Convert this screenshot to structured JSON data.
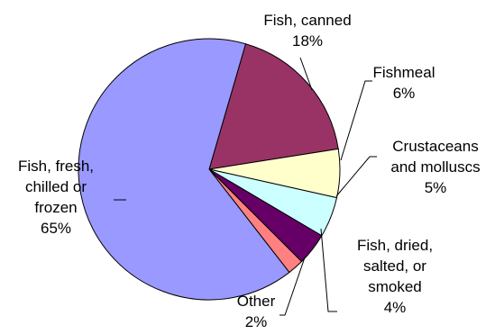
{
  "chart_data": {
    "type": "pie",
    "title": "",
    "slices": [
      {
        "label": "Fish, fresh, chilled or frozen",
        "value": 65,
        "value_label": "65%",
        "color": "#9999ff",
        "label_lines": [
          "Fish, fresh,",
          "chilled or",
          "frozen"
        ]
      },
      {
        "label": "Fish, canned",
        "value": 18,
        "value_label": "18%",
        "color": "#993366",
        "label_lines": [
          "Fish, canned"
        ]
      },
      {
        "label": "Fishmeal",
        "value": 6,
        "value_label": "6%",
        "color": "#ffffcc",
        "label_lines": [
          "Fishmeal"
        ]
      },
      {
        "label": "Crustaceans and molluscs",
        "value": 5,
        "value_label": "5%",
        "color": "#ccffff",
        "label_lines": [
          "Crustaceans",
          "and molluscs"
        ]
      },
      {
        "label": "Fish, dried, salted, or smoked",
        "value": 4,
        "value_label": "4%",
        "color": "#660066",
        "label_lines": [
          "Fish, dried,",
          "salted, or",
          "smoked"
        ]
      },
      {
        "label": "Other",
        "value": 2,
        "value_label": "2%",
        "color": "#ff8080",
        "label_lines": [
          "Other"
        ]
      }
    ]
  }
}
